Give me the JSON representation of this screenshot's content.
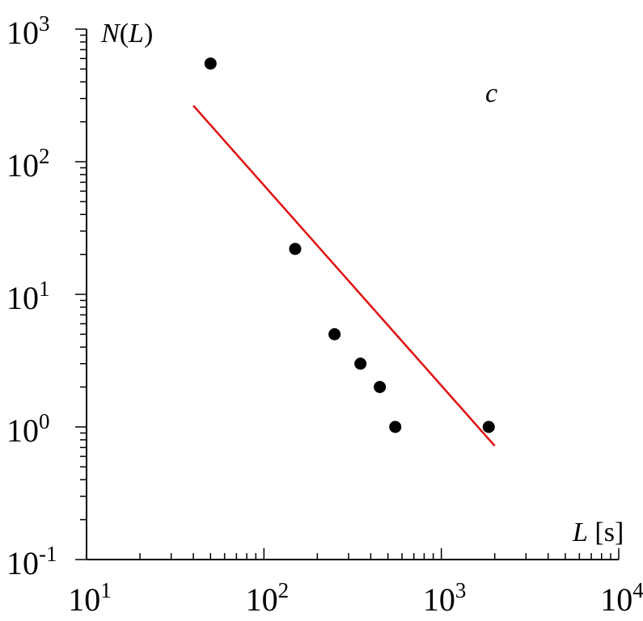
{
  "chart_data": {
    "type": "scatter",
    "panel_label": "c",
    "xlabel": {
      "var": "L",
      "unit": " [s]"
    },
    "ylabel": {
      "var": "N",
      "open": "(",
      "arg": "L",
      "close": ")"
    },
    "xscale": "log",
    "yscale": "log",
    "xlim": [
      10,
      10000
    ],
    "ylim": [
      0.1,
      1000
    ],
    "x_ticks": [
      {
        "value": 10,
        "base": "10",
        "exp": "1"
      },
      {
        "value": 100,
        "base": "10",
        "exp": "2"
      },
      {
        "value": 1000,
        "base": "10",
        "exp": "3"
      },
      {
        "value": 10000,
        "base": "10",
        "exp": "4"
      }
    ],
    "y_ticks": [
      {
        "value": 0.1,
        "base": "10",
        "exp": "-1"
      },
      {
        "value": 1,
        "base": "10",
        "exp": "0"
      },
      {
        "value": 10,
        "base": "10",
        "exp": "1"
      },
      {
        "value": 100,
        "base": "10",
        "exp": "2"
      },
      {
        "value": 1000,
        "base": "10",
        "exp": "3"
      }
    ],
    "points": [
      {
        "x": 50,
        "y": 550
      },
      {
        "x": 150,
        "y": 22
      },
      {
        "x": 250,
        "y": 5
      },
      {
        "x": 350,
        "y": 3
      },
      {
        "x": 450,
        "y": 2
      },
      {
        "x": 550,
        "y": 1
      },
      {
        "x": 1850,
        "y": 1
      }
    ],
    "fit_line": {
      "x": [
        40,
        2000
      ],
      "y": [
        265,
        0.72
      ],
      "color": "#e01010"
    },
    "point_color": "#000000",
    "grid": false
  }
}
